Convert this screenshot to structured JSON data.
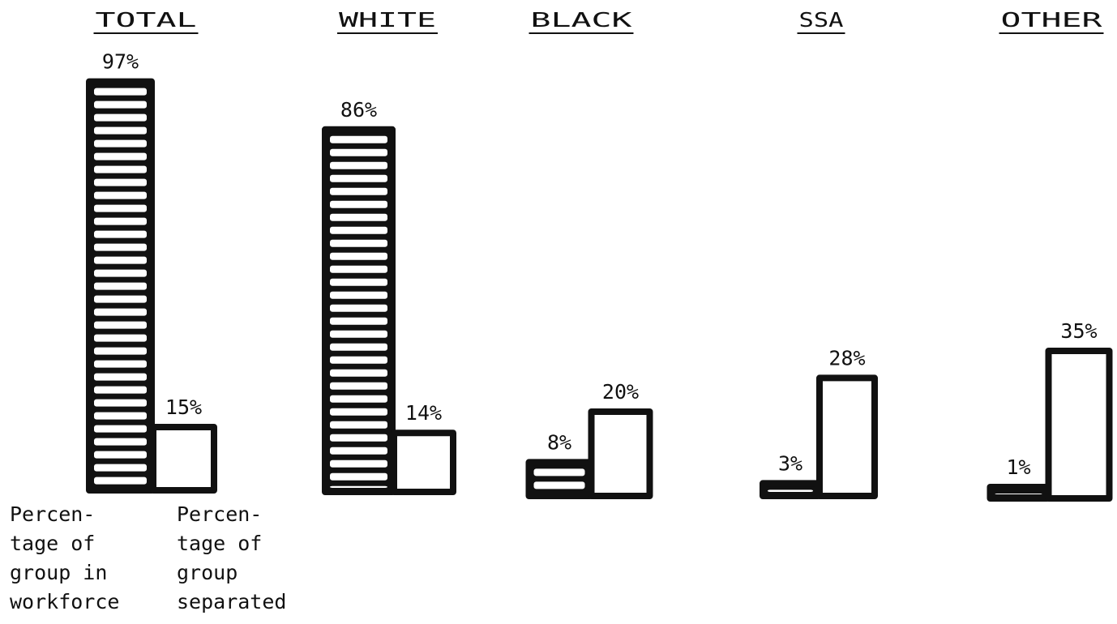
{
  "chart_data": {
    "type": "bar",
    "categories": [
      "TOTAL",
      "WHITE",
      "BLACK",
      "SSA",
      "OTHER"
    ],
    "series": [
      {
        "name": "Percentage of group in workforce",
        "values": [
          97,
          86,
          8,
          3,
          1
        ],
        "value_labels": [
          "97%",
          "86%",
          "8%",
          "3%",
          "1%"
        ],
        "fill": "hatched"
      },
      {
        "name": "Percentage of group separated",
        "values": [
          15,
          14,
          20,
          28,
          35
        ],
        "value_labels": [
          "15%",
          "14%",
          "20%",
          "28%",
          "35%"
        ],
        "fill": "open"
      }
    ],
    "legend_lines": [
      [
        "Percen-",
        "tage of",
        "group in",
        "workforce"
      ],
      [
        "Percen-",
        "tage of",
        "group",
        "separated"
      ]
    ],
    "legend": "bottom-left",
    "title": "",
    "xlabel": "",
    "ylabel": "",
    "ylim": [
      0,
      100
    ],
    "grid": false,
    "colors": {
      "ink": "#111111",
      "background": "#ffffff"
    }
  }
}
